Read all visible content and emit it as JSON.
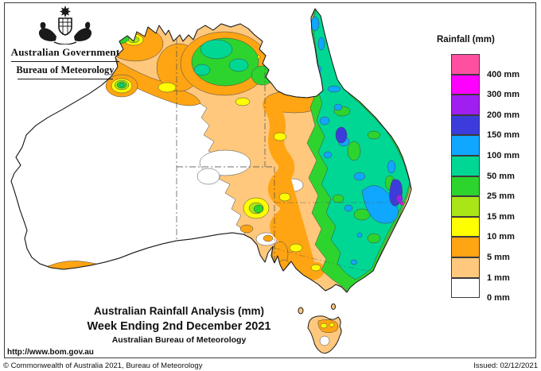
{
  "header": {
    "gov_title": "Australian Government",
    "bureau_title": "Bureau of Meteorology"
  },
  "legend": {
    "title": "Rainfall (mm)",
    "entries": [
      {
        "label": "400 mm",
        "color": "#FF4FA0"
      },
      {
        "label": "300 mm",
        "color": "#FF00FF"
      },
      {
        "label": "200 mm",
        "color": "#A01EF0"
      },
      {
        "label": "150 mm",
        "color": "#3C3CDC"
      },
      {
        "label": "100 mm",
        "color": "#0FA7FF"
      },
      {
        "label": "50 mm",
        "color": "#00D795"
      },
      {
        "label": "25 mm",
        "color": "#2ED42E"
      },
      {
        "label": "15 mm",
        "color": "#A8E617"
      },
      {
        "label": "10 mm",
        "color": "#FFFF00"
      },
      {
        "label": "5 mm",
        "color": "#FFA413"
      },
      {
        "label": "1 mm",
        "color": "#FFC87D"
      },
      {
        "label": "0 mm",
        "color": "#FFFFFF"
      }
    ]
  },
  "titles": {
    "line1": "Australian Rainfall Analysis (mm)",
    "line2": "Week Ending 2nd December 2021",
    "line3": "Australian Bureau of Meteorology"
  },
  "footer": {
    "url": "http://www.bom.gov.au",
    "copyright": "© Commonwealth of Australia 2021, Bureau of Meteorology",
    "issued": "Issued: 02/12/2021"
  },
  "map": {
    "region": "Australia",
    "unit": "mm",
    "rainfall_levels_mm": [
      0,
      1,
      5,
      10,
      15,
      25,
      50,
      100,
      150,
      200,
      300,
      400
    ],
    "state_borders_shown": true
  }
}
